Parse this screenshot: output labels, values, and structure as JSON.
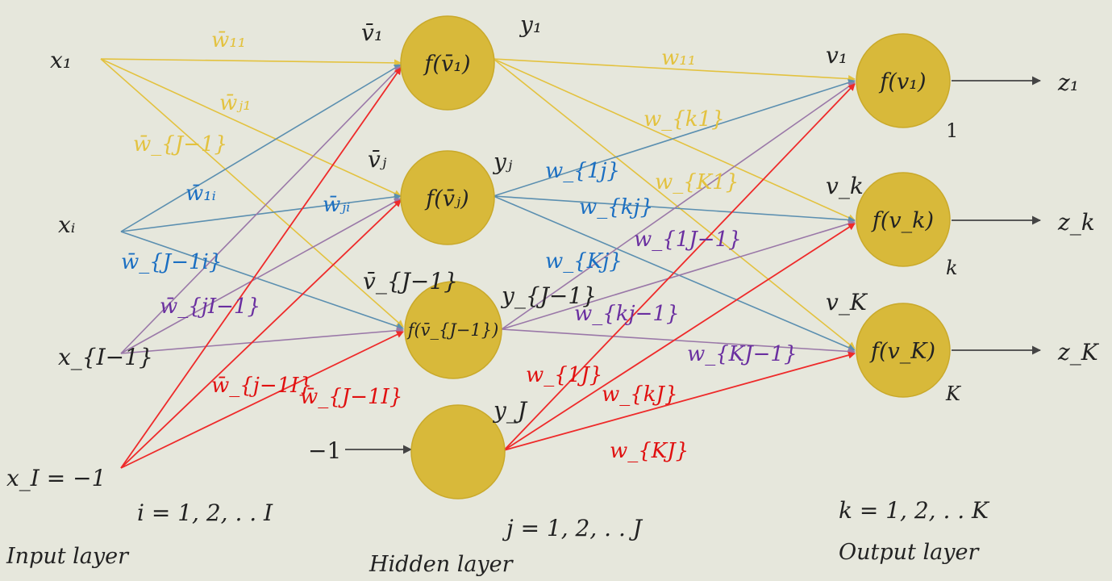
{
  "colors": {
    "background": "#e6e7dc",
    "node_fill": "#d8b93a",
    "node_stroke": "#c9a92a",
    "yellow": "#e3c23f",
    "blue": "#5b8fb0",
    "purple": "#9a78a8",
    "red": "#ee2a2a",
    "dark": "#444444",
    "blue_text": "#1b6fc2",
    "purple_text": "#6a2fa0",
    "red_text": "#e01010"
  },
  "inputs": [
    {
      "label": "x₁"
    },
    {
      "label": "xᵢ"
    },
    {
      "label": "x_{I−1}"
    },
    {
      "label": "x_I = −1"
    }
  ],
  "hidden": {
    "nodes": [
      {
        "inlabel": "v̄₁",
        "func": "f(v̄₁)",
        "out": "y₁"
      },
      {
        "inlabel": "v̄ⱼ",
        "func": "f(v̄ⱼ)",
        "out": "yⱼ"
      },
      {
        "inlabel": "v̄_{J−1}",
        "func": "f(v̄_{J−1})",
        "out": "y_{J−1}"
      },
      {
        "inlabel": "−1",
        "func": "",
        "out": "y_J"
      }
    ]
  },
  "outputs": {
    "nodes": [
      {
        "inlabel": "v₁",
        "func": "f(v₁)",
        "index": "1",
        "out": "z₁"
      },
      {
        "inlabel": "v_k",
        "func": "f(v_k)",
        "index": "k",
        "out": "z_k"
      },
      {
        "inlabel": "v_K",
        "func": "f(v_K)",
        "index": "K",
        "out": "z_K"
      }
    ]
  },
  "weights_in": {
    "w11": "w̄₁₁",
    "wj1": "w̄ⱼ₁",
    "wJm1_1": "w̄_{J−1}",
    "w1i": "w̄₁ᵢ",
    "wji": "w̄ⱼᵢ",
    "wJm1_i": "w̄_{J−1i}",
    "wjIm1": "w̄_{jI−1}",
    "wjm1_I": "w̄_{j−1I}",
    "wJm1_I": "w̄_{J−1I}"
  },
  "weights_out": {
    "w11": "w₁₁",
    "wk1": "w_{k1}",
    "wK1": "w_{K1}",
    "w1j": "w_{1j}",
    "wkj": "w_{kj}",
    "wKj": "w_{Kj}",
    "w1Jm1": "w_{1J−1}",
    "wkjm1": "w_{kj−1}",
    "wKJm1": "w_{KJ−1}",
    "w1J": "w_{1J}",
    "wkJ": "w_{kJ}",
    "wKJ": "w_{KJ}"
  },
  "ranges": {
    "input": "i = 1, 2, . . I",
    "hidden": "j = 1, 2, . . J",
    "output": "k = 1, 2, . . K"
  },
  "layers": {
    "input": "Input layer",
    "hidden": "Hidden layer",
    "output": "Output layer"
  }
}
